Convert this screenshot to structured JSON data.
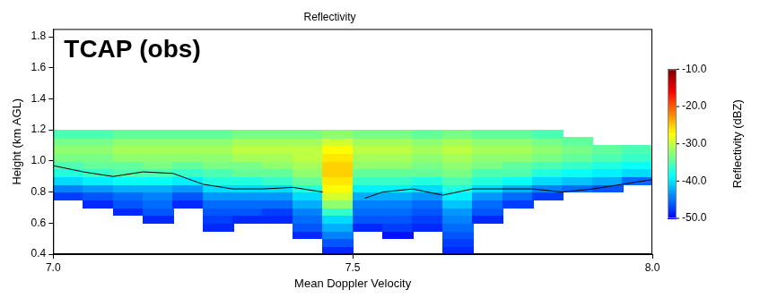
{
  "chart_data": {
    "type": "heatmap",
    "title": "Reflectivity",
    "annotation": "TCAP (obs)",
    "xlabel": "Mean Doppler Velocity",
    "ylabel": "Height (km AGL)",
    "xlim": [
      7.0,
      8.0
    ],
    "xticks": [
      {
        "value": 7.0,
        "label": "7.0"
      },
      {
        "value": 7.5,
        "label": "7.5"
      },
      {
        "value": 8.0,
        "label": "8.0"
      }
    ],
    "ylim": [
      0.4,
      1.85
    ],
    "yticks": [
      0.4,
      0.6,
      0.8,
      {
        "value": 1.0,
        "label": "1.0"
      },
      1.2,
      1.4,
      1.6,
      1.8
    ],
    "grid": false,
    "x_edges": [
      7.0,
      7.05,
      7.1,
      7.15,
      7.2,
      7.25,
      7.3,
      7.35,
      7.4,
      7.45,
      7.5,
      7.55,
      7.6,
      7.65,
      7.7,
      7.75,
      7.8,
      7.85,
      7.9,
      7.95,
      8.0
    ],
    "y_edges": [
      0.4,
      0.45,
      0.5,
      0.55,
      0.6,
      0.65,
      0.7,
      0.75,
      0.8,
      0.85,
      0.9,
      0.95,
      1.0,
      1.05,
      1.1,
      1.15,
      1.2
    ],
    "cells": [
      [
        null,
        null,
        null,
        null,
        null,
        null,
        null,
        null,
        null,
        -48,
        null,
        null,
        null,
        -48,
        null,
        null,
        null,
        null,
        null,
        null
      ],
      [
        null,
        null,
        null,
        null,
        null,
        null,
        null,
        null,
        null,
        -46,
        null,
        null,
        null,
        -47,
        null,
        null,
        null,
        null,
        null,
        null
      ],
      [
        null,
        null,
        null,
        null,
        null,
        null,
        null,
        null,
        -48,
        -44,
        null,
        -49,
        null,
        -46,
        null,
        null,
        null,
        null,
        null,
        null
      ],
      [
        null,
        null,
        null,
        null,
        null,
        -48,
        null,
        null,
        -46,
        -42,
        -48,
        -47,
        -48,
        -45,
        null,
        null,
        null,
        null,
        null,
        null
      ],
      [
        null,
        null,
        null,
        -48,
        null,
        -47,
        -48,
        -48,
        -45,
        -40,
        -46,
        -46,
        -47,
        -44,
        -48,
        null,
        null,
        null,
        null,
        null
      ],
      [
        null,
        null,
        -48,
        -46,
        null,
        -46,
        -46,
        -47,
        -44,
        -36,
        -45,
        -45,
        -46,
        -43,
        -46,
        null,
        null,
        null,
        null,
        null
      ],
      [
        null,
        -48,
        -46,
        -45,
        -48,
        -45,
        -45,
        -45,
        -42,
        -32,
        -44,
        -44,
        -45,
        -41,
        -45,
        -47,
        null,
        null,
        null,
        null
      ],
      [
        -47,
        -46,
        -45,
        -44,
        -46,
        -43,
        -43,
        -43,
        -40,
        -29,
        -42,
        -42,
        -43,
        -39,
        -43,
        -45,
        -47,
        null,
        null,
        null
      ],
      [
        -44,
        -43,
        -42,
        -42,
        -43,
        -40,
        -40,
        -40,
        -37,
        -27,
        -39,
        -39,
        -40,
        -37,
        -40,
        -42,
        -44,
        -45,
        -46,
        null
      ],
      [
        -40,
        -39,
        -38,
        -38,
        -39,
        -37,
        -37,
        -36,
        -34,
        -26,
        -36,
        -36,
        -37,
        -35,
        -37,
        -38,
        -40,
        -41,
        -42,
        -45
      ],
      [
        -37,
        -36,
        -35,
        -35,
        -36,
        -35,
        -34,
        -34,
        -32,
        -25,
        -34,
        -34,
        -34,
        -33,
        -35,
        -35,
        -37,
        -38,
        -39,
        -40
      ],
      [
        -35,
        -34,
        -34,
        -33,
        -34,
        -33,
        -33,
        -32,
        -31,
        -25,
        -32,
        -32,
        -33,
        -32,
        -33,
        -34,
        -35,
        -36,
        -37,
        -38
      ],
      [
        -33,
        -33,
        -32,
        -32,
        -32,
        -32,
        -31,
        -31,
        -30,
        -26,
        -31,
        -31,
        -32,
        -31,
        -32,
        -32,
        -33,
        -34,
        -35,
        -36
      ],
      [
        -32,
        -32,
        -31,
        -31,
        -31,
        -31,
        -30,
        -30,
        -30,
        -27,
        -30,
        -30,
        -31,
        -30,
        -31,
        -31,
        -32,
        -33,
        -34,
        -35
      ],
      [
        -33,
        -33,
        -32,
        -32,
        -32,
        -32,
        -31,
        -31,
        -31,
        -29,
        -31,
        -31,
        -32,
        -31,
        -32,
        -32,
        -33,
        -34,
        null,
        null
      ],
      [
        -35,
        -35,
        -34,
        -34,
        -34,
        -34,
        -33,
        -33,
        -33,
        -32,
        -33,
        -33,
        -34,
        -33,
        -34,
        -34,
        -35,
        null,
        null,
        null
      ]
    ],
    "colorbar": {
      "label": "Reflectivity (dBZ)",
      "range": [
        -50,
        -10
      ],
      "ticks": [
        {
          "value": -10,
          "label": "-10.0"
        },
        {
          "value": -20,
          "label": "-20.0"
        },
        {
          "value": -30,
          "label": "-30.0"
        },
        {
          "value": -40,
          "label": "-40.0"
        },
        {
          "value": -50,
          "label": "-50.0"
        }
      ]
    },
    "series": [
      {
        "type": "line",
        "color": "#000000",
        "x": [
          7.0,
          7.05,
          7.1,
          7.15,
          7.2,
          7.25,
          7.3,
          7.35,
          7.4,
          7.45,
          7.48,
          7.52,
          7.55,
          7.6,
          7.65,
          7.7,
          7.75,
          7.8,
          7.85,
          7.9,
          7.95,
          8.0
        ],
        "values": [
          0.97,
          0.93,
          0.9,
          0.93,
          0.92,
          0.85,
          0.82,
          0.82,
          0.83,
          0.8,
          null,
          0.76,
          0.8,
          0.82,
          0.78,
          0.82,
          0.82,
          0.82,
          0.8,
          0.82,
          0.85,
          0.88
        ]
      }
    ]
  }
}
